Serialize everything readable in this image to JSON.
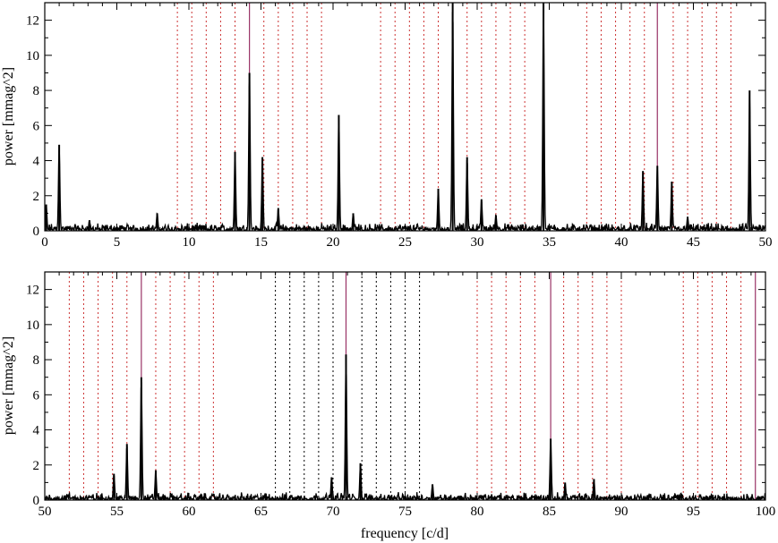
{
  "chart_data": [
    {
      "type": "line",
      "title": "",
      "xlabel": "",
      "ylabel": "power [mmag^2]",
      "xlim": [
        0,
        50
      ],
      "ylim": [
        0,
        13
      ],
      "x_ticks": [
        0,
        5,
        10,
        15,
        20,
        25,
        30,
        35,
        40,
        45,
        50
      ],
      "y_ticks": [
        0,
        2,
        4,
        6,
        8,
        10,
        12
      ],
      "grid": false,
      "legend": "none",
      "series": [
        {
          "color": "#000000",
          "noise_level": 0.3,
          "peaks": [
            {
              "x": 0.1,
              "y": 1.5
            },
            {
              "x": 1.0,
              "y": 4.9
            },
            {
              "x": 3.1,
              "y": 0.6
            },
            {
              "x": 7.8,
              "y": 1.0
            },
            {
              "x": 13.2,
              "y": 4.5
            },
            {
              "x": 14.2,
              "y": 9.0
            },
            {
              "x": 15.1,
              "y": 4.2
            },
            {
              "x": 16.2,
              "y": 1.3
            },
            {
              "x": 20.4,
              "y": 6.6
            },
            {
              "x": 21.4,
              "y": 1.0
            },
            {
              "x": 27.3,
              "y": 2.4
            },
            {
              "x": 28.3,
              "y": 13.0
            },
            {
              "x": 29.3,
              "y": 4.2
            },
            {
              "x": 30.3,
              "y": 1.8
            },
            {
              "x": 31.3,
              "y": 0.9
            },
            {
              "x": 34.6,
              "y": 13.0
            },
            {
              "x": 41.5,
              "y": 3.4
            },
            {
              "x": 42.5,
              "y": 3.7
            },
            {
              "x": 43.5,
              "y": 2.8
            },
            {
              "x": 44.6,
              "y": 0.8
            },
            {
              "x": 48.9,
              "y": 8.0
            }
          ]
        }
      ],
      "reference_lines": {
        "dotted_red": [
          9.2,
          10.2,
          11.2,
          12.2,
          13.2,
          15.2,
          16.2,
          17.2,
          18.2,
          19.2,
          23.3,
          24.3,
          25.3,
          26.3,
          27.3,
          29.3,
          30.3,
          31.3,
          32.3,
          33.3,
          37.6,
          38.6,
          39.6,
          40.6,
          41.6,
          43.6,
          44.6,
          45.6,
          46.6,
          47.6
        ],
        "dotted_red_color": "#cc3333",
        "solid_purple": [
          14.2,
          42.5
        ],
        "solid_purple_color": "#993366"
      }
    },
    {
      "type": "line",
      "title": "",
      "xlabel": "frequency [c/d]",
      "ylabel": "power [mmag^2]",
      "xlim": [
        50,
        100
      ],
      "ylim": [
        0,
        13
      ],
      "x_ticks": [
        50,
        55,
        60,
        65,
        70,
        75,
        80,
        85,
        90,
        95,
        100
      ],
      "y_ticks": [
        0,
        2,
        4,
        6,
        8,
        10,
        12
      ],
      "grid": false,
      "legend": "none",
      "series": [
        {
          "color": "#000000",
          "noise_level": 0.3,
          "peaks": [
            {
              "x": 54.8,
              "y": 1.5
            },
            {
              "x": 55.7,
              "y": 3.2
            },
            {
              "x": 56.7,
              "y": 7.0
            },
            {
              "x": 57.7,
              "y": 1.7
            },
            {
              "x": 69.9,
              "y": 1.3
            },
            {
              "x": 70.9,
              "y": 8.3
            },
            {
              "x": 71.9,
              "y": 2.1
            },
            {
              "x": 76.9,
              "y": 0.9
            },
            {
              "x": 85.1,
              "y": 3.5
            },
            {
              "x": 86.1,
              "y": 1.0
            },
            {
              "x": 88.1,
              "y": 1.2
            }
          ]
        }
      ],
      "reference_lines": {
        "dotted_red": [
          51.7,
          52.7,
          53.7,
          54.7,
          55.7,
          57.7,
          58.7,
          59.7,
          60.7,
          61.7,
          80.0,
          81.0,
          82.0,
          83.0,
          84.0,
          86.0,
          87.0,
          88.0,
          89.0,
          90.0,
          94.3,
          95.3,
          96.3,
          97.3,
          98.3
        ],
        "dotted_black": [
          66.0,
          67.0,
          68.0,
          69.0,
          70.0,
          72.0,
          73.0,
          74.0,
          75.0,
          76.0
        ],
        "dotted_red_color": "#cc3333",
        "solid_purple": [
          56.7,
          70.9,
          85.1,
          99.3
        ],
        "solid_purple_color": "#993366"
      }
    }
  ]
}
